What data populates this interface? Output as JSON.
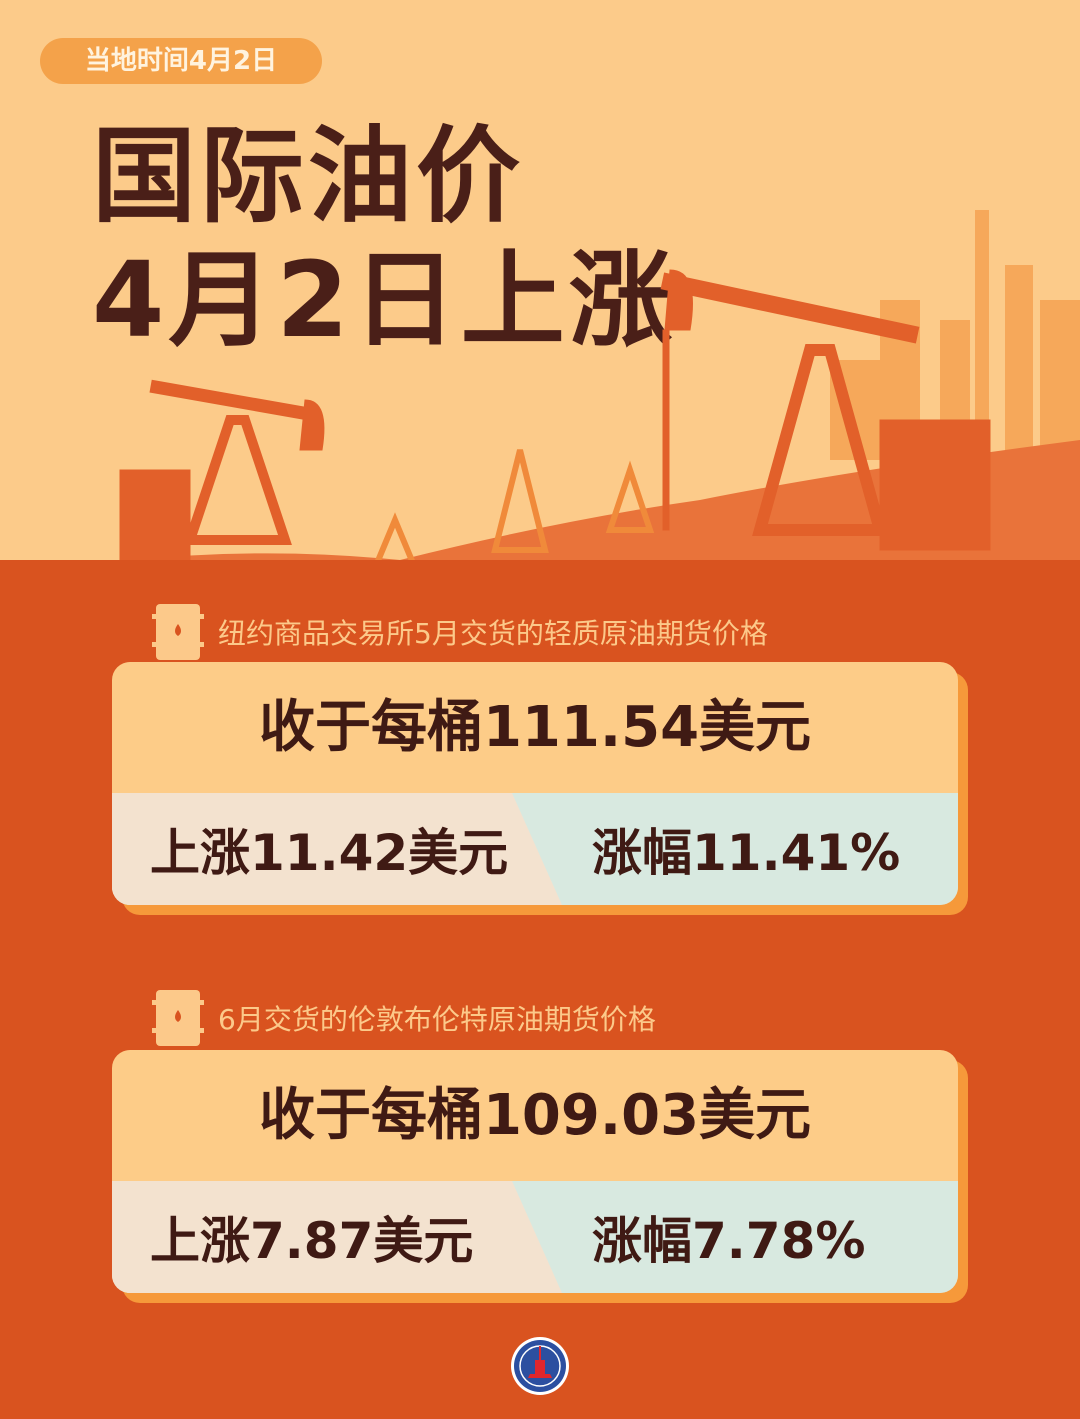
{
  "date_badge": "当地时间4月2日",
  "title": {
    "line1": "国际油价",
    "line2": "4月2日上涨"
  },
  "sections": [
    {
      "label": "纽约商品交易所5月交货的轻质原油期货价格",
      "close": "收于每桶111.54美元",
      "rise": "上涨11.42美元",
      "pct": "涨幅11.41%"
    },
    {
      "label": "6月交货的伦敦布伦特原油期货价格",
      "close": "收于每桶109.03美元",
      "rise": "上涨7.87美元",
      "pct": "涨幅7.78%"
    }
  ],
  "logo": "XINHUA",
  "colors": {
    "bg_top": "#fccb8a",
    "bg_bottom": "#d9531f",
    "text": "#3f1a14",
    "shadow": "#f6993a"
  }
}
